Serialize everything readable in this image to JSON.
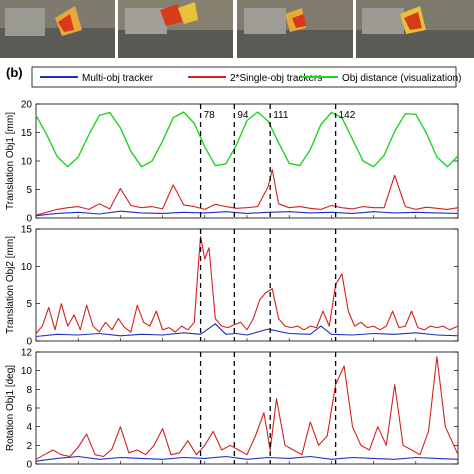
{
  "panel_label": "(b)",
  "legend": {
    "placement": "top",
    "entries": [
      {
        "label": "Multi-obj tracker",
        "color": "#1f2fbf"
      },
      {
        "label": "2*Single-obj trackers",
        "color": "#d42020"
      },
      {
        "label": "Obj distance (visualization)",
        "color": "#22d422"
      }
    ]
  },
  "frame_markers": [
    "78",
    "94",
    "111",
    "142"
  ],
  "colors": {
    "blue": "#1f2fbf",
    "red": "#d42020",
    "green": "#22d422"
  },
  "chart_data": [
    {
      "type": "line",
      "ylabel": "Translation Obj1 [mm]",
      "ylim": [
        0,
        20
      ],
      "yticks": [
        "0",
        "5",
        "10",
        "15",
        "20"
      ],
      "xlim": [
        0,
        200
      ],
      "grid": false,
      "markers_x": [
        78,
        94,
        111,
        142
      ],
      "series": [
        {
          "name": "Multi-obj tracker",
          "color": "#1f2fbf",
          "x": [
            0,
            10,
            20,
            30,
            40,
            50,
            60,
            70,
            80,
            90,
            100,
            110,
            120,
            130,
            140,
            150,
            160,
            170,
            180,
            190,
            200
          ],
          "y": [
            0.4,
            0.8,
            1.0,
            0.7,
            1.2,
            0.9,
            0.8,
            1.0,
            0.9,
            1.1,
            0.8,
            1.0,
            1.1,
            0.9,
            1.0,
            0.8,
            1.1,
            0.9,
            1.0,
            0.9,
            0.8
          ]
        },
        {
          "name": "2*Single-obj trackers",
          "color": "#d42020",
          "x": [
            0,
            5,
            10,
            15,
            20,
            25,
            30,
            35,
            40,
            45,
            50,
            55,
            60,
            65,
            70,
            75,
            80,
            85,
            90,
            95,
            100,
            105,
            110,
            112,
            115,
            120,
            125,
            130,
            135,
            140,
            145,
            150,
            155,
            160,
            165,
            170,
            175,
            180,
            185,
            190,
            195,
            200
          ],
          "y": [
            0.5,
            1.0,
            1.5,
            1.8,
            2.0,
            1.5,
            2.5,
            1.6,
            5.2,
            2.2,
            1.8,
            2.0,
            1.6,
            5.8,
            2.3,
            2.0,
            1.5,
            2.4,
            2.0,
            1.7,
            1.8,
            2.0,
            5.5,
            8.5,
            2.5,
            1.8,
            2.0,
            1.7,
            1.5,
            2.2,
            1.8,
            1.6,
            2.0,
            1.8,
            1.8,
            7.5,
            2.0,
            1.5,
            1.9,
            1.7,
            1.5,
            1.8
          ]
        },
        {
          "name": "Obj distance (visualization)",
          "color": "#22d422",
          "x": [
            0,
            5,
            10,
            15,
            20,
            25,
            30,
            35,
            40,
            45,
            50,
            55,
            60,
            65,
            70,
            75,
            80,
            85,
            90,
            95,
            100,
            105,
            110,
            115,
            120,
            125,
            130,
            135,
            140,
            145,
            150,
            155,
            160,
            165,
            170,
            175,
            180,
            185,
            190,
            195,
            200
          ],
          "y": [
            18.0,
            14.7,
            10.8,
            9.0,
            10.7,
            14.6,
            18.0,
            18.5,
            15.8,
            11.7,
            9.0,
            10.0,
            13.5,
            17.6,
            18.6,
            16.6,
            12.5,
            9.2,
            9.5,
            12.8,
            17.1,
            18.6,
            17.0,
            13.2,
            9.6,
            9.2,
            12.0,
            16.4,
            18.5,
            17.6,
            13.8,
            10.0,
            9.0,
            11.0,
            15.2,
            18.3,
            18.2,
            14.9,
            10.7,
            9.0,
            10.9
          ]
        }
      ]
    },
    {
      "type": "line",
      "ylabel": "Translation Obj2 [mm]",
      "ylim": [
        0,
        15
      ],
      "yticks": [
        "0",
        "5",
        "10",
        "15"
      ],
      "xlim": [
        0,
        200
      ],
      "grid": false,
      "markers_x": [
        78,
        94,
        111,
        142
      ],
      "series": [
        {
          "name": "Multi-obj tracker",
          "color": "#1f2fbf",
          "x": [
            0,
            10,
            20,
            30,
            40,
            50,
            60,
            70,
            78,
            85,
            90,
            95,
            100,
            110,
            120,
            130,
            135,
            140,
            150,
            160,
            170,
            180,
            190,
            200
          ],
          "y": [
            0.6,
            0.9,
            0.8,
            1.0,
            0.7,
            0.9,
            0.8,
            1.1,
            0.9,
            2.3,
            0.9,
            1.0,
            0.8,
            1.6,
            1.0,
            0.9,
            2.0,
            0.9,
            0.8,
            1.0,
            0.9,
            1.1,
            0.8,
            0.7
          ]
        },
        {
          "name": "2*Single-obj trackers",
          "color": "#d42020",
          "x": [
            0,
            3,
            6,
            9,
            12,
            15,
            18,
            21,
            24,
            27,
            30,
            33,
            36,
            39,
            42,
            45,
            48,
            51,
            54,
            57,
            60,
            63,
            66,
            69,
            72,
            75,
            77,
            78,
            80,
            82,
            85,
            88,
            91,
            94,
            97,
            100,
            103,
            106,
            109,
            112,
            115,
            118,
            121,
            124,
            127,
            130,
            133,
            136,
            139,
            142,
            145,
            148,
            151,
            154,
            157,
            160,
            163,
            166,
            169,
            172,
            175,
            178,
            181,
            184,
            187,
            190,
            193,
            196,
            200
          ],
          "y": [
            1.0,
            2.0,
            4.5,
            1.5,
            5.0,
            2.0,
            3.5,
            1.5,
            4.8,
            2.0,
            1.2,
            2.5,
            1.5,
            3.0,
            1.8,
            1.2,
            4.8,
            2.5,
            2.0,
            4.0,
            1.5,
            1.8,
            1.2,
            2.0,
            1.5,
            2.5,
            10.5,
            14.0,
            11.0,
            12.5,
            3.0,
            2.0,
            1.8,
            2.2,
            2.5,
            1.5,
            3.0,
            5.5,
            6.5,
            7.0,
            3.0,
            2.0,
            1.8,
            2.0,
            1.5,
            2.0,
            1.8,
            4.0,
            2.0,
            7.5,
            9.0,
            4.0,
            2.0,
            2.5,
            1.8,
            2.0,
            1.5,
            2.0,
            4.0,
            1.8,
            2.0,
            4.0,
            1.8,
            1.5,
            2.0,
            1.8,
            2.0,
            1.5,
            2.0
          ]
        }
      ]
    },
    {
      "type": "line",
      "ylabel": "Rotation Obj1 [deg]",
      "ylim": [
        0,
        12
      ],
      "yticks": [
        "0",
        "2",
        "4",
        "6",
        "8",
        "10",
        "12"
      ],
      "xlim": [
        0,
        200
      ],
      "grid": false,
      "markers_x": [
        78,
        94,
        111,
        142
      ],
      "series": [
        {
          "name": "Multi-obj tracker",
          "color": "#1f2fbf",
          "x": [
            0,
            10,
            20,
            30,
            40,
            50,
            60,
            70,
            80,
            90,
            100,
            110,
            120,
            130,
            140,
            150,
            160,
            170,
            180,
            190,
            200
          ],
          "y": [
            0.3,
            0.6,
            0.8,
            0.5,
            0.7,
            0.6,
            0.5,
            0.7,
            0.6,
            0.8,
            0.5,
            0.7,
            0.6,
            0.8,
            0.5,
            0.7,
            0.6,
            0.5,
            0.7,
            0.6,
            0.5
          ]
        },
        {
          "name": "2*Single-obj trackers",
          "color": "#d42020",
          "x": [
            0,
            4,
            8,
            12,
            16,
            20,
            24,
            28,
            32,
            36,
            40,
            44,
            48,
            52,
            56,
            60,
            64,
            68,
            72,
            76,
            80,
            84,
            88,
            92,
            96,
            100,
            104,
            108,
            111,
            114,
            118,
            122,
            126,
            130,
            134,
            138,
            142,
            146,
            150,
            154,
            158,
            162,
            166,
            170,
            174,
            178,
            182,
            186,
            190,
            194,
            198,
            200
          ],
          "y": [
            0.5,
            1.0,
            1.5,
            1.0,
            0.8,
            1.8,
            3.2,
            1.0,
            0.8,
            1.6,
            4.0,
            1.2,
            1.5,
            1.0,
            2.0,
            3.8,
            1.0,
            1.2,
            2.5,
            1.0,
            2.0,
            3.5,
            1.5,
            2.0,
            1.5,
            1.0,
            3.0,
            5.5,
            1.5,
            7.0,
            2.0,
            1.5,
            1.0,
            4.5,
            2.0,
            3.0,
            8.5,
            10.5,
            4.0,
            2.0,
            1.5,
            4.0,
            2.0,
            8.5,
            2.0,
            1.5,
            1.0,
            3.5,
            11.5,
            4.0,
            2.0,
            1.0
          ]
        }
      ]
    }
  ]
}
